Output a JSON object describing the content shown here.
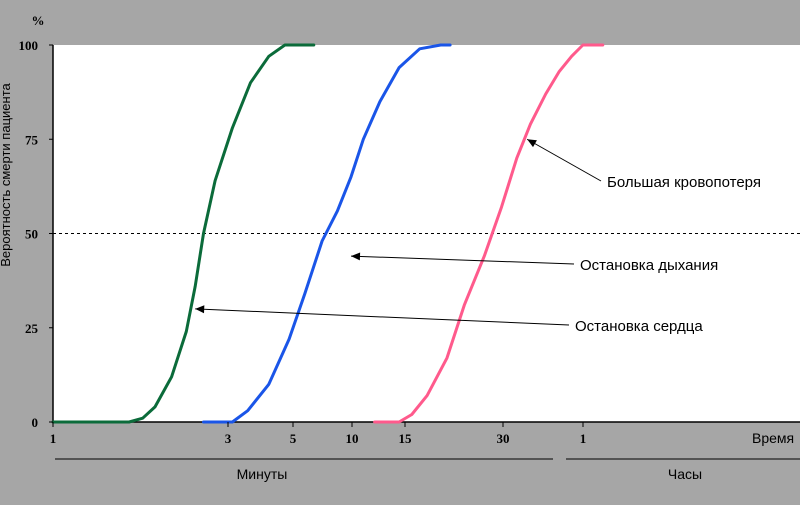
{
  "chart_data": {
    "type": "line",
    "y_unit": "%",
    "ylabel": "Вероятность смерти пациента",
    "xlabel": "Время",
    "ylim": [
      0,
      100
    ],
    "y_ticks": [
      0,
      25,
      50,
      75,
      100
    ],
    "x_ticks": [
      "1",
      "3",
      "5",
      "10",
      "15",
      "30",
      "1"
    ],
    "x_groups": [
      "Минуты",
      "Часы"
    ],
    "threshold": 50,
    "background": "#a6a6a6",
    "plot_background": "#ffffff",
    "series": [
      {
        "name": "Остановка сердца",
        "color": "#0b6b3a",
        "points": [
          [
            1,
            0
          ],
          [
            1.8,
            0
          ],
          [
            2,
            1
          ],
          [
            2.2,
            4
          ],
          [
            2.5,
            12
          ],
          [
            2.8,
            24
          ],
          [
            3,
            36
          ],
          [
            3.2,
            50
          ],
          [
            3.5,
            64
          ],
          [
            4,
            78
          ],
          [
            4.6,
            90
          ],
          [
            5.3,
            97
          ],
          [
            6,
            100
          ],
          [
            7.5,
            100
          ]
        ]
      },
      {
        "name": "Остановка дыхания",
        "color": "#1a55e8",
        "points": [
          [
            3.2,
            0
          ],
          [
            4,
            0
          ],
          [
            4.5,
            3
          ],
          [
            5.3,
            10
          ],
          [
            6.2,
            22
          ],
          [
            7,
            34
          ],
          [
            8,
            48
          ],
          [
            9,
            56
          ],
          [
            10,
            65
          ],
          [
            11,
            75
          ],
          [
            12.5,
            85
          ],
          [
            14.5,
            94
          ],
          [
            17,
            99
          ],
          [
            20,
            100
          ],
          [
            21.5,
            100
          ]
        ]
      },
      {
        "name": "Большая кровопотеря",
        "color": "#ff5a8c",
        "points": [
          [
            12,
            0
          ],
          [
            14.5,
            0
          ],
          [
            16,
            2
          ],
          [
            18,
            7
          ],
          [
            21,
            17
          ],
          [
            24,
            31
          ],
          [
            28,
            44
          ],
          [
            32,
            57
          ],
          [
            36,
            70
          ],
          [
            40,
            79
          ],
          [
            45,
            87
          ],
          [
            50,
            93
          ],
          [
            55,
            97
          ],
          [
            60,
            100
          ],
          [
            70,
            100
          ]
        ]
      }
    ],
    "annotations": [
      {
        "text": "Большая кровопотеря",
        "series": 2,
        "x": 39,
        "y": 75
      },
      {
        "text": "Остановка дыхания",
        "series": 1,
        "x": 10,
        "y": 44
      },
      {
        "text": "Остановка сердца",
        "series": 0,
        "x": 3,
        "y": 30
      }
    ]
  }
}
